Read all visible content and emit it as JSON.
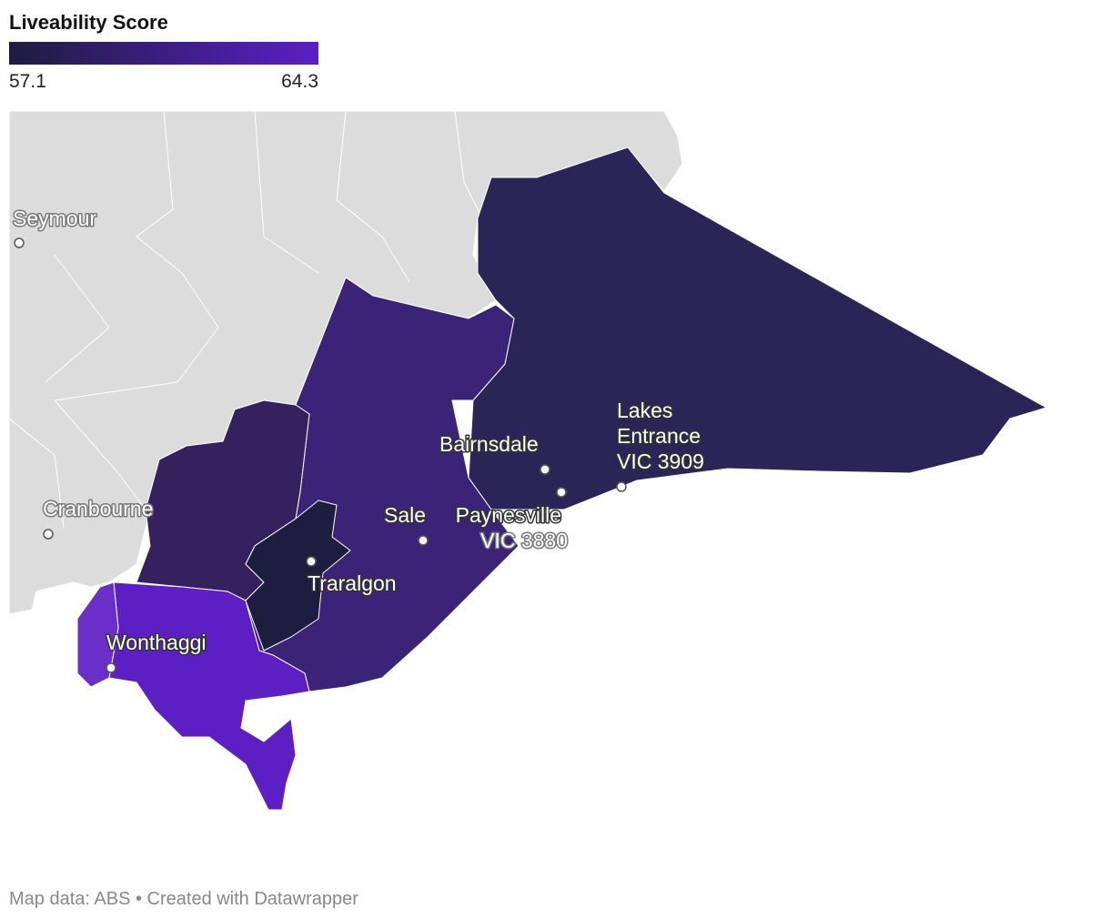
{
  "legend": {
    "title": "Liveability Score",
    "min": 57.1,
    "max": 64.3
  },
  "places": [
    {
      "lines": [
        "Seymour"
      ]
    },
    {
      "lines": [
        "Cranbourne"
      ]
    },
    {
      "lines": [
        "Bairnsdale"
      ]
    },
    {
      "lines": [
        "Lakes",
        "Entrance",
        "VIC 3909"
      ]
    },
    {
      "lines": [
        "Sale"
      ]
    },
    {
      "lines": [
        "Paynesville",
        "VIC 3880"
      ]
    },
    {
      "lines": [
        "Traralgon"
      ]
    },
    {
      "lines": [
        "Wonthaggi"
      ]
    }
  ],
  "footer": "Map data: ABS • Created with Datawrapper"
}
